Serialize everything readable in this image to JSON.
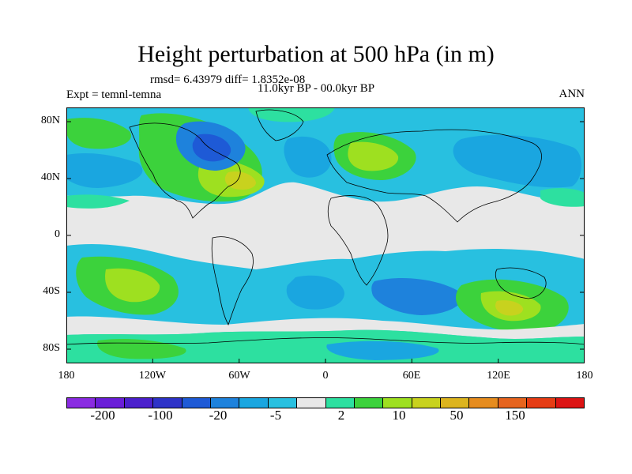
{
  "title": "Height perturbation at 500 hPa (in m)",
  "subtitle_stats": "rmsd= 6.43979 diff= 1.8352e-08",
  "subtitle_period": "11.0kyr BP - 00.0kyr BP",
  "experiment": "Expt = temnl-temna",
  "season": "ANN",
  "map": {
    "lat_labels": [
      "80N",
      "40N",
      "0",
      "40S",
      "80S"
    ],
    "lon_labels": [
      "180",
      "120W",
      "60W",
      "0",
      "60E",
      "120E",
      "180"
    ],
    "ocean_color": "#e8e8e8",
    "coast_color": "#000000"
  },
  "colorbar": {
    "colors": [
      "#8a2be2",
      "#6a1ed8",
      "#4b20cc",
      "#2e33c8",
      "#1e5ad6",
      "#1e82dc",
      "#1aa6e0",
      "#28c0e0",
      "#e8e8e8",
      "#2de0a0",
      "#3cd23c",
      "#9ee020",
      "#c8d21e",
      "#dcb41e",
      "#e68c1e",
      "#e6641e",
      "#e63c14",
      "#dc1414"
    ],
    "labels": [
      "-200",
      "-100",
      "-20",
      "-5",
      "2",
      "10",
      "50",
      "150"
    ]
  }
}
